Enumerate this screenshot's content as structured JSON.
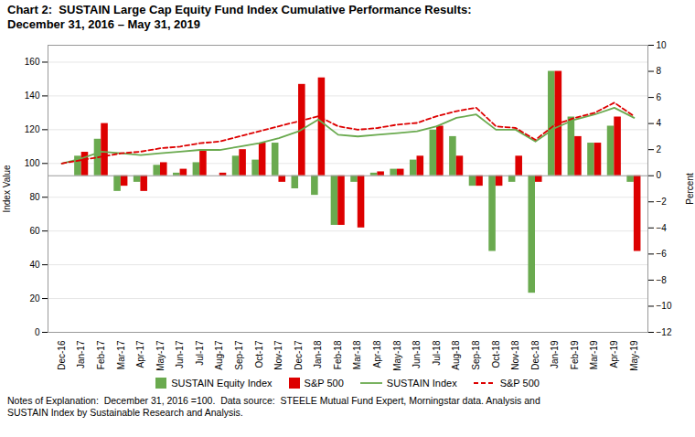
{
  "chart_data": {
    "type": "bar",
    "title": "Chart 2:  SUSTAIN Large Cap Equity Fund Index Cumulative Performance Results:\nDecember 31, 2016 – May 31, 2019",
    "annotations": [
      "Notes of Explanation:  December 31, 2016 =100.  Data source:  STEELE Mutual Fund Expert, Morningstar data. Analysis and\nSUSTAIN Index by Sustainable Research and Analysis."
    ],
    "categories": [
      "Dec-16",
      "Jan-17",
      "Feb-17",
      "Mar-17",
      "Apr-17",
      "May-17",
      "Jun-17",
      "Jul-17",
      "Aug-17",
      "Sep-17",
      "Oct-17",
      "Nov-17",
      "Dec-17",
      "Jan-18",
      "Feb-18",
      "Mar-18",
      "Apr-18",
      "May-18",
      "Jun-18",
      "Jul-18",
      "Aug-18",
      "Sep-18",
      "Oct-18",
      "Nov-18",
      "Dec-18",
      "Jan-19",
      "Feb-19",
      "Mar-19",
      "Apr-19",
      "May-19"
    ],
    "ylabel": "Index Value",
    "y2label": "Percent",
    "ylim": [
      0,
      170
    ],
    "yticks": [
      0,
      20,
      40,
      60,
      80,
      100,
      120,
      140,
      160
    ],
    "y2lim": [
      -12,
      10
    ],
    "y2ticks": [
      -12,
      -10,
      -8,
      -6,
      -4,
      -2,
      0,
      2,
      4,
      6,
      8,
      10
    ],
    "grid": true,
    "legend": "bottom",
    "series": [
      {
        "name": "SUSTAIN Equity Index",
        "type": "bar",
        "axis": "y2",
        "color": "#6aaa4f",
        "values": [
          0.0,
          1.5,
          2.8,
          -1.2,
          -0.5,
          0.8,
          0.2,
          1.0,
          0.0,
          1.5,
          1.2,
          2.5,
          -1.0,
          -1.5,
          -3.8,
          -0.5,
          0.2,
          0.5,
          1.2,
          3.5,
          3.0,
          -0.8,
          -5.8,
          -0.5,
          -9.0,
          8.0,
          4.5,
          2.5,
          3.8,
          -0.5
        ]
      },
      {
        "name": "S&P 500",
        "type": "bar",
        "axis": "y2",
        "color": "#dd0000",
        "values": [
          0.0,
          1.8,
          4.0,
          -0.8,
          -1.2,
          1.0,
          0.5,
          2.0,
          0.2,
          2.0,
          2.5,
          -0.5,
          7.0,
          7.5,
          -3.8,
          -4.0,
          0.3,
          0.5,
          1.5,
          3.8,
          1.5,
          -0.8,
          -0.8,
          1.5,
          -0.5,
          8.0,
          3.0,
          2.5,
          4.5,
          -5.8
        ]
      },
      {
        "name": "SUSTAIN Index",
        "type": "line",
        "color": "#6aaa4f",
        "line_style": "solid",
        "values": [
          100,
          103,
          107,
          106,
          105,
          106,
          107,
          108,
          108,
          110,
          112,
          115,
          119,
          126,
          117,
          116,
          117,
          118,
          119,
          122,
          127,
          129,
          120,
          120,
          113,
          121,
          126,
          129,
          133,
          127
        ]
      },
      {
        "name": "S&P 500",
        "type": "line",
        "color": "#dd0000",
        "line_style": "dashed",
        "values": [
          100,
          102,
          104,
          106,
          107,
          109,
          110,
          112,
          113,
          116,
          119,
          122,
          125,
          128,
          122,
          120,
          121,
          123,
          124,
          128,
          131,
          133,
          122,
          121,
          114,
          123,
          127,
          130,
          136,
          128
        ]
      }
    ]
  }
}
